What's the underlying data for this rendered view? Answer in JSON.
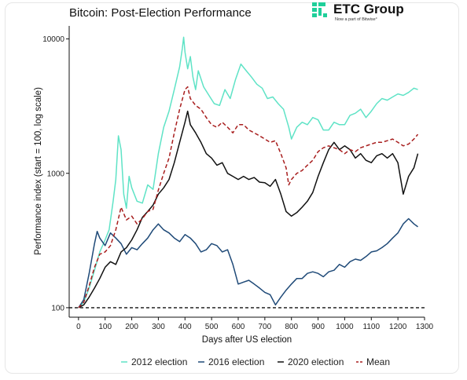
{
  "logo": {
    "name": "ETC Group",
    "tagline": "Now a part of Bitwise°"
  },
  "chart_data": {
    "type": "line",
    "title": "Bitcoin: Post-Election Performance",
    "xlabel": "Days after US election",
    "ylabel": "Performance index (start = 100, log scale)",
    "y_scale": "log",
    "xlim": [
      -35,
      1300
    ],
    "ylim": [
      85,
      12500
    ],
    "x_ticks": [
      0,
      100,
      200,
      300,
      400,
      500,
      600,
      700,
      800,
      900,
      1000,
      1100,
      1200,
      1300
    ],
    "x_tick_labels": [
      "0",
      "100",
      "200",
      "300",
      "400",
      "500",
      "600",
      "700",
      "800",
      "900",
      "1000",
      "1100",
      "1200",
      "1300"
    ],
    "y_ticks": [
      100,
      1000,
      10000
    ],
    "y_tick_labels": [
      "100",
      "1000",
      "10000"
    ],
    "grid": false,
    "baseline": {
      "y": 100,
      "style": "dashed",
      "color": "#111111"
    },
    "legend_position": "bottom",
    "series": [
      {
        "name": "2012 election",
        "color": "#5fe3c6",
        "dash": "",
        "points": [
          [
            0,
            100
          ],
          [
            20,
            110
          ],
          [
            40,
            140
          ],
          [
            60,
            190
          ],
          [
            80,
            260
          ],
          [
            100,
            320
          ],
          [
            115,
            380
          ],
          [
            130,
            620
          ],
          [
            140,
            900
          ],
          [
            150,
            1900
          ],
          [
            160,
            1500
          ],
          [
            170,
            700
          ],
          [
            180,
            550
          ],
          [
            190,
            950
          ],
          [
            200,
            780
          ],
          [
            220,
            620
          ],
          [
            240,
            600
          ],
          [
            260,
            820
          ],
          [
            280,
            760
          ],
          [
            300,
            1400
          ],
          [
            320,
            2200
          ],
          [
            340,
            2900
          ],
          [
            360,
            4200
          ],
          [
            380,
            6200
          ],
          [
            390,
            8500
          ],
          [
            395,
            10300
          ],
          [
            400,
            8000
          ],
          [
            410,
            6000
          ],
          [
            420,
            7400
          ],
          [
            430,
            5200
          ],
          [
            440,
            4200
          ],
          [
            450,
            5800
          ],
          [
            470,
            4400
          ],
          [
            490,
            3800
          ],
          [
            510,
            3300
          ],
          [
            530,
            3200
          ],
          [
            550,
            4200
          ],
          [
            570,
            3600
          ],
          [
            590,
            5000
          ],
          [
            610,
            6500
          ],
          [
            630,
            5800
          ],
          [
            650,
            5200
          ],
          [
            670,
            4600
          ],
          [
            690,
            4300
          ],
          [
            710,
            3600
          ],
          [
            730,
            3700
          ],
          [
            750,
            3300
          ],
          [
            770,
            3000
          ],
          [
            790,
            2200
          ],
          [
            800,
            1800
          ],
          [
            820,
            2200
          ],
          [
            840,
            2400
          ],
          [
            860,
            2300
          ],
          [
            880,
            2600
          ],
          [
            900,
            2500
          ],
          [
            920,
            2100
          ],
          [
            940,
            2100
          ],
          [
            960,
            2400
          ],
          [
            980,
            2300
          ],
          [
            1000,
            2300
          ],
          [
            1020,
            2700
          ],
          [
            1040,
            2800
          ],
          [
            1060,
            3000
          ],
          [
            1080,
            2600
          ],
          [
            1100,
            2900
          ],
          [
            1120,
            3300
          ],
          [
            1140,
            3600
          ],
          [
            1160,
            3500
          ],
          [
            1180,
            3700
          ],
          [
            1200,
            3900
          ],
          [
            1220,
            3800
          ],
          [
            1240,
            4000
          ],
          [
            1260,
            4300
          ],
          [
            1275,
            4200
          ]
        ]
      },
      {
        "name": "2016 election",
        "color": "#1f4a78",
        "dash": "",
        "points": [
          [
            0,
            100
          ],
          [
            20,
            115
          ],
          [
            40,
            180
          ],
          [
            60,
            300
          ],
          [
            70,
            370
          ],
          [
            80,
            330
          ],
          [
            100,
            290
          ],
          [
            120,
            360
          ],
          [
            140,
            330
          ],
          [
            160,
            300
          ],
          [
            180,
            250
          ],
          [
            200,
            280
          ],
          [
            220,
            270
          ],
          [
            240,
            300
          ],
          [
            260,
            330
          ],
          [
            280,
            380
          ],
          [
            300,
            420
          ],
          [
            320,
            380
          ],
          [
            340,
            360
          ],
          [
            360,
            330
          ],
          [
            380,
            310
          ],
          [
            400,
            350
          ],
          [
            420,
            330
          ],
          [
            440,
            300
          ],
          [
            460,
            260
          ],
          [
            480,
            270
          ],
          [
            500,
            300
          ],
          [
            520,
            290
          ],
          [
            540,
            260
          ],
          [
            560,
            270
          ],
          [
            580,
            210
          ],
          [
            600,
            150
          ],
          [
            620,
            155
          ],
          [
            640,
            160
          ],
          [
            660,
            150
          ],
          [
            680,
            140
          ],
          [
            700,
            130
          ],
          [
            720,
            125
          ],
          [
            740,
            105
          ],
          [
            760,
            120
          ],
          [
            780,
            135
          ],
          [
            800,
            150
          ],
          [
            820,
            165
          ],
          [
            840,
            165
          ],
          [
            860,
            180
          ],
          [
            880,
            185
          ],
          [
            900,
            180
          ],
          [
            920,
            170
          ],
          [
            940,
            185
          ],
          [
            960,
            190
          ],
          [
            980,
            210
          ],
          [
            1000,
            200
          ],
          [
            1020,
            220
          ],
          [
            1040,
            230
          ],
          [
            1060,
            225
          ],
          [
            1080,
            240
          ],
          [
            1100,
            260
          ],
          [
            1120,
            265
          ],
          [
            1140,
            280
          ],
          [
            1160,
            300
          ],
          [
            1180,
            330
          ],
          [
            1200,
            360
          ],
          [
            1220,
            420
          ],
          [
            1240,
            460
          ],
          [
            1260,
            420
          ],
          [
            1275,
            400
          ]
        ]
      },
      {
        "name": "2020 election",
        "color": "#111111",
        "dash": "",
        "points": [
          [
            0,
            100
          ],
          [
            20,
            105
          ],
          [
            40,
            120
          ],
          [
            60,
            140
          ],
          [
            80,
            165
          ],
          [
            100,
            200
          ],
          [
            120,
            220
          ],
          [
            140,
            210
          ],
          [
            160,
            260
          ],
          [
            180,
            280
          ],
          [
            200,
            320
          ],
          [
            220,
            380
          ],
          [
            240,
            470
          ],
          [
            260,
            520
          ],
          [
            280,
            580
          ],
          [
            300,
            700
          ],
          [
            320,
            780
          ],
          [
            340,
            900
          ],
          [
            360,
            1200
          ],
          [
            380,
            1700
          ],
          [
            400,
            2400
          ],
          [
            410,
            2900
          ],
          [
            420,
            2300
          ],
          [
            440,
            2000
          ],
          [
            460,
            1700
          ],
          [
            480,
            1400
          ],
          [
            500,
            1300
          ],
          [
            520,
            1150
          ],
          [
            540,
            1200
          ],
          [
            560,
            1000
          ],
          [
            580,
            950
          ],
          [
            600,
            900
          ],
          [
            620,
            950
          ],
          [
            640,
            900
          ],
          [
            660,
            930
          ],
          [
            680,
            860
          ],
          [
            700,
            850
          ],
          [
            720,
            800
          ],
          [
            740,
            900
          ],
          [
            760,
            700
          ],
          [
            780,
            520
          ],
          [
            800,
            480
          ],
          [
            820,
            510
          ],
          [
            840,
            560
          ],
          [
            860,
            620
          ],
          [
            880,
            720
          ],
          [
            900,
            950
          ],
          [
            920,
            1200
          ],
          [
            940,
            1500
          ],
          [
            960,
            1700
          ],
          [
            980,
            1500
          ],
          [
            1000,
            1600
          ],
          [
            1020,
            1500
          ],
          [
            1040,
            1300
          ],
          [
            1060,
            1400
          ],
          [
            1080,
            1250
          ],
          [
            1100,
            1200
          ],
          [
            1120,
            1350
          ],
          [
            1140,
            1400
          ],
          [
            1160,
            1300
          ],
          [
            1180,
            1400
          ],
          [
            1200,
            1200
          ],
          [
            1220,
            700
          ],
          [
            1240,
            950
          ],
          [
            1260,
            1100
          ],
          [
            1275,
            1400
          ]
        ]
      },
      {
        "name": "Mean",
        "color": "#a81e1e",
        "dash": "5,3",
        "points": [
          [
            0,
            100
          ],
          [
            20,
            110
          ],
          [
            40,
            145
          ],
          [
            60,
            200
          ],
          [
            80,
            250
          ],
          [
            100,
            260
          ],
          [
            120,
            290
          ],
          [
            140,
            380
          ],
          [
            160,
            560
          ],
          [
            180,
            450
          ],
          [
            200,
            480
          ],
          [
            220,
            420
          ],
          [
            240,
            460
          ],
          [
            260,
            520
          ],
          [
            280,
            540
          ],
          [
            300,
            750
          ],
          [
            320,
            1000
          ],
          [
            340,
            1300
          ],
          [
            360,
            2000
          ],
          [
            380,
            3000
          ],
          [
            400,
            4200
          ],
          [
            410,
            4400
          ],
          [
            420,
            3600
          ],
          [
            440,
            3200
          ],
          [
            460,
            3000
          ],
          [
            480,
            2600
          ],
          [
            500,
            2300
          ],
          [
            520,
            2200
          ],
          [
            540,
            2400
          ],
          [
            560,
            2200
          ],
          [
            580,
            2000
          ],
          [
            600,
            2300
          ],
          [
            620,
            2300
          ],
          [
            640,
            2100
          ],
          [
            660,
            2000
          ],
          [
            680,
            1900
          ],
          [
            700,
            1800
          ],
          [
            720,
            1700
          ],
          [
            740,
            1750
          ],
          [
            760,
            1400
          ],
          [
            780,
            1100
          ],
          [
            790,
            820
          ],
          [
            800,
            900
          ],
          [
            820,
            1000
          ],
          [
            840,
            1050
          ],
          [
            860,
            1150
          ],
          [
            880,
            1250
          ],
          [
            900,
            1450
          ],
          [
            920,
            1550
          ],
          [
            940,
            1600
          ],
          [
            960,
            1550
          ],
          [
            980,
            1500
          ],
          [
            1000,
            1400
          ],
          [
            1020,
            1500
          ],
          [
            1040,
            1450
          ],
          [
            1060,
            1550
          ],
          [
            1080,
            1600
          ],
          [
            1100,
            1650
          ],
          [
            1120,
            1700
          ],
          [
            1140,
            1700
          ],
          [
            1160,
            1750
          ],
          [
            1180,
            1800
          ],
          [
            1200,
            1700
          ],
          [
            1220,
            1600
          ],
          [
            1240,
            1650
          ],
          [
            1260,
            1800
          ],
          [
            1275,
            1950
          ]
        ]
      }
    ]
  }
}
